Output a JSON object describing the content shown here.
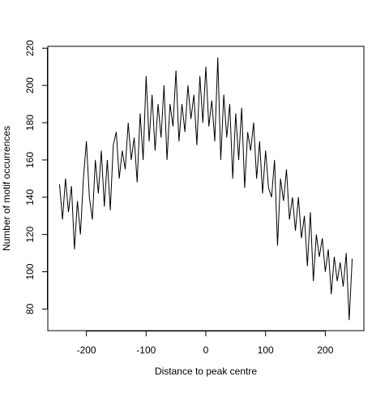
{
  "chart_data": {
    "type": "line",
    "xlabel": "Distance to peak centre",
    "ylabel": "Number of motif occurrences",
    "x": [
      -245,
      -240,
      -235,
      -230,
      -225,
      -220,
      -215,
      -210,
      -205,
      -200,
      -195,
      -190,
      -185,
      -180,
      -175,
      -170,
      -165,
      -160,
      -155,
      -150,
      -145,
      -140,
      -135,
      -130,
      -125,
      -120,
      -115,
      -110,
      -105,
      -100,
      -95,
      -90,
      -85,
      -80,
      -75,
      -70,
      -65,
      -60,
      -55,
      -50,
      -45,
      -40,
      -35,
      -30,
      -25,
      -20,
      -15,
      -10,
      -5,
      0,
      5,
      10,
      15,
      20,
      25,
      30,
      35,
      40,
      45,
      50,
      55,
      60,
      65,
      70,
      75,
      80,
      85,
      90,
      95,
      100,
      105,
      110,
      115,
      120,
      125,
      130,
      135,
      140,
      145,
      150,
      155,
      160,
      165,
      170,
      175,
      180,
      185,
      190,
      195,
      200,
      205,
      210,
      215,
      220,
      225,
      230,
      235,
      240,
      245
    ],
    "series": [
      {
        "color": "#000000",
        "values": [
          147,
          128,
          150,
          132,
          146,
          112,
          138,
          120,
          150,
          170,
          140,
          128,
          160,
          142,
          165,
          135,
          160,
          133,
          168,
          175,
          150,
          165,
          155,
          180,
          160,
          172,
          148,
          185,
          160,
          205,
          170,
          195,
          165,
          190,
          172,
          200,
          160,
          190,
          178,
          208,
          170,
          190,
          175,
          200,
          182,
          195,
          168,
          205,
          180,
          210,
          178,
          192,
          170,
          215,
          160,
          195,
          172,
          190,
          150,
          185,
          160,
          188,
          145,
          175,
          165,
          180,
          150,
          170,
          142,
          165,
          145,
          140,
          160,
          114,
          150,
          138,
          155,
          128,
          140,
          122,
          140,
          118,
          130,
          103,
          132,
          95,
          120,
          108,
          118,
          100,
          112,
          88,
          108,
          95,
          105,
          92,
          110,
          74,
          107
        ]
      }
    ],
    "xlim": [
      -264.6,
      264.6
    ],
    "ylim": [
      68.4,
      221
    ],
    "xticks": [
      -200,
      -100,
      0,
      100,
      200
    ],
    "yticks": [
      80,
      100,
      120,
      140,
      160,
      180,
      200,
      220
    ]
  }
}
